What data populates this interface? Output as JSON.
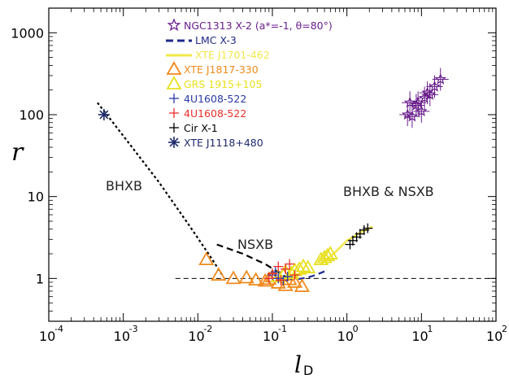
{
  "chart_data": {
    "type": "scatter",
    "xscale": "log",
    "yscale": "log",
    "xlim": [
      0.0001,
      100
    ],
    "ylim": [
      0.3,
      2000
    ],
    "xticks": [
      "10^-4",
      "10^-3",
      "10^-2",
      "10^-1",
      "10^0",
      "10^1",
      "10^2"
    ],
    "yticks": [
      "1",
      "10",
      "100",
      "1000"
    ],
    "xlabel": "l",
    "xlabel_sub": "D",
    "ylabel": "r",
    "annotations": [
      "BHXB",
      "NSXB",
      "BHXB & NSXB"
    ],
    "reference_line": {
      "y": 1,
      "x_range": [
        0.005,
        100
      ],
      "style": "dashed",
      "color": "#000000"
    },
    "legend": [
      {
        "label": "NGC1313 X-2 (a*=-1, θ=80°)",
        "color": "#6a1f8c",
        "marker": "star"
      },
      {
        "label": "LMC X-3",
        "color": "#1f2a8c",
        "marker": "dashed-line"
      },
      {
        "label": "XTE J1701-462",
        "color": "#f2e84a",
        "marker": "solid-line"
      },
      {
        "label": "XTE J1817-330",
        "color": "#f08a1c",
        "marker": "open-triangle"
      },
      {
        "label": "GRS 1915+105",
        "color": "#e8e020",
        "marker": "open-triangle"
      },
      {
        "label": "4U1608-522",
        "color": "#2a3aa8",
        "marker": "plus"
      },
      {
        "label": "4U1608-522",
        "color": "#e8302a",
        "marker": "plus"
      },
      {
        "label": "Cir X-1",
        "color": "#000000",
        "marker": "plus"
      },
      {
        "label": "XTE J1118+480",
        "color": "#1f2a6c",
        "marker": "asterisk"
      }
    ],
    "series": [
      {
        "name": "XTE J1118+480",
        "color": "#1f2a6c",
        "marker": "asterisk",
        "points": [
          [
            0.00055,
            100
          ]
        ]
      },
      {
        "name": "BHXB track",
        "color": "#000000",
        "style": "dotted",
        "line": [
          [
            0.00045,
            140
          ],
          [
            0.001,
            55
          ],
          [
            0.003,
            15
          ],
          [
            0.008,
            4.2
          ],
          [
            0.015,
            1.8
          ],
          [
            0.022,
            1.05
          ]
        ]
      },
      {
        "name": "NSXB track",
        "color": "#000000",
        "style": "dashed",
        "line": [
          [
            0.018,
            2.6
          ],
          [
            0.04,
            2.0
          ],
          [
            0.08,
            1.5
          ],
          [
            0.15,
            1.05
          ]
        ]
      },
      {
        "name": "LMC X-3",
        "color": "#1f2a8c",
        "style": "dashed",
        "line": [
          [
            0.16,
            0.97
          ],
          [
            0.22,
            0.98
          ],
          [
            0.3,
            1.03
          ],
          [
            0.38,
            1.1
          ],
          [
            0.5,
            1.22
          ]
        ]
      },
      {
        "name": "XTE J1701-462",
        "color": "#f2e84a",
        "style": "solid",
        "line": [
          [
            0.45,
            1.5
          ],
          [
            0.7,
            2.1
          ],
          [
            1.0,
            2.9
          ],
          [
            1.5,
            3.6
          ],
          [
            2.2,
            4.3
          ]
        ]
      },
      {
        "name": "XTE J1817-330",
        "color": "#f08a1c",
        "marker": "open-triangle",
        "points": [
          [
            0.013,
            1.7
          ],
          [
            0.019,
            1.1
          ],
          [
            0.03,
            1.0
          ],
          [
            0.045,
            1.02
          ],
          [
            0.06,
            0.96
          ],
          [
            0.08,
            0.93
          ],
          [
            0.1,
            1.05
          ],
          [
            0.12,
            0.88
          ],
          [
            0.15,
            0.82
          ],
          [
            0.17,
            0.97
          ],
          [
            0.2,
            0.9
          ],
          [
            0.25,
            0.8
          ],
          [
            0.14,
            1.1
          ],
          [
            0.09,
            0.98
          ]
        ]
      },
      {
        "name": "GRS 1915+105",
        "color": "#e8e020",
        "marker": "open-triangle",
        "points": [
          [
            0.12,
            1.05
          ],
          [
            0.15,
            1.2
          ],
          [
            0.18,
            1.15
          ],
          [
            0.2,
            1.25
          ],
          [
            0.23,
            1.3
          ],
          [
            0.26,
            1.4
          ],
          [
            0.3,
            1.35
          ],
          [
            0.45,
            1.7
          ],
          [
            0.5,
            1.8
          ],
          [
            0.55,
            1.9
          ],
          [
            0.6,
            2.0
          ]
        ]
      },
      {
        "name": "4U1608-522 (blue)",
        "color": "#2a3aa8",
        "marker": "plus",
        "points": [
          [
            0.1,
            1.1
          ],
          [
            0.12,
            1.0
          ],
          [
            0.14,
            0.95
          ],
          [
            0.11,
            1.2
          ],
          [
            0.16,
            1.05
          ]
        ]
      },
      {
        "name": "4U1608-522 (red)",
        "color": "#e8302a",
        "marker": "plus",
        "points": [
          [
            0.12,
            1.4
          ],
          [
            0.15,
            1.3
          ],
          [
            0.1,
            1.15
          ],
          [
            0.13,
            0.95
          ],
          [
            0.17,
            1.5
          ],
          [
            0.2,
            1.1
          ],
          [
            0.09,
            1.0
          ]
        ]
      },
      {
        "name": "Cir X-1",
        "color": "#000000",
        "marker": "plus",
        "points": [
          [
            1.1,
            2.6
          ],
          [
            1.2,
            2.9
          ],
          [
            1.35,
            3.2
          ],
          [
            1.5,
            3.5
          ],
          [
            1.7,
            3.9
          ],
          [
            1.9,
            4.1
          ]
        ]
      },
      {
        "name": "NGC1313 X-2",
        "color": "#6a1f8c",
        "marker": "star",
        "points": [
          [
            6.5,
            100
          ],
          [
            7.5,
            95
          ],
          [
            7.0,
            140
          ],
          [
            8.5,
            130
          ],
          [
            10,
            110
          ],
          [
            11,
            160
          ],
          [
            12,
            185
          ],
          [
            13,
            175
          ],
          [
            15,
            220
          ],
          [
            18,
            270
          ],
          [
            9,
            140
          ]
        ]
      }
    ]
  }
}
